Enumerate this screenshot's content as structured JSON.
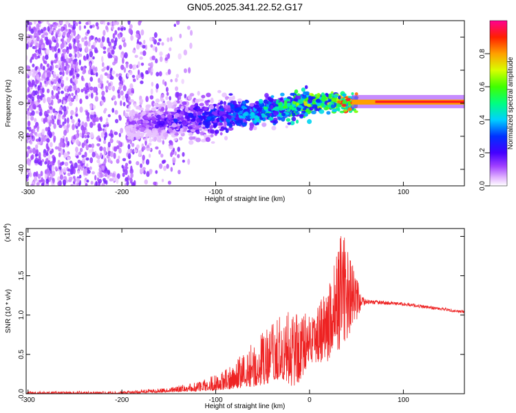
{
  "title": "GN05.2025.341.22.52.G17",
  "chart_data": [
    {
      "type": "heatmap",
      "name": "spectrogram",
      "xlabel": "Height of straight line (km)",
      "ylabel": "Frequency (Hz)",
      "xlim": [
        -302,
        165
      ],
      "ylim": [
        -50,
        50
      ],
      "xticks": [
        -300,
        -200,
        -100,
        0,
        100
      ],
      "yticks": [
        -40,
        -20,
        0,
        20,
        40
      ],
      "colorbar": {
        "label": "Normalized spectral amplitude",
        "range": [
          0,
          1
        ],
        "ticks": [
          0.0,
          0.2,
          0.4,
          0.6,
          0.8
        ]
      },
      "ridge": [
        {
          "x": -190,
          "freq": -12,
          "amp": 0.12
        },
        {
          "x": -150,
          "freq": -11,
          "amp": 0.2
        },
        {
          "x": -100,
          "freq": -8,
          "amp": 0.28
        },
        {
          "x": -60,
          "freq": -6,
          "amp": 0.38
        },
        {
          "x": -20,
          "freq": -2,
          "amp": 0.5
        },
        {
          "x": 0,
          "freq": 0,
          "amp": 0.62
        },
        {
          "x": 20,
          "freq": 0,
          "amp": 0.58
        },
        {
          "x": 45,
          "freq": 0,
          "amp": 0.85
        },
        {
          "x": 70,
          "freq": 1,
          "amp": 0.78
        },
        {
          "x": 100,
          "freq": 1,
          "amp": 0.95
        },
        {
          "x": 165,
          "freq": 1,
          "amp": 0.9
        }
      ]
    },
    {
      "type": "line",
      "name": "snr",
      "xlabel": "Height of straight line (km)",
      "ylabel": "SNR (10 * v/v)",
      "y_multiplier": "(x10^4)",
      "xlim": [
        -302,
        165
      ],
      "ylim": [
        0,
        2.1
      ],
      "xticks": [
        -300,
        -200,
        -100,
        0,
        100
      ],
      "yticks": [
        0.0,
        0.5,
        1.0,
        1.5,
        2.0
      ],
      "envelope": [
        {
          "x": -300,
          "low": 0.0,
          "high": 0.03
        },
        {
          "x": -200,
          "low": 0.0,
          "high": 0.03
        },
        {
          "x": -150,
          "low": 0.02,
          "high": 0.08
        },
        {
          "x": -120,
          "low": 0.03,
          "high": 0.15
        },
        {
          "x": -90,
          "low": 0.05,
          "high": 0.3
        },
        {
          "x": -70,
          "low": 0.08,
          "high": 0.55
        },
        {
          "x": -50,
          "low": 0.1,
          "high": 0.8
        },
        {
          "x": -30,
          "low": 0.2,
          "high": 1.0
        },
        {
          "x": -15,
          "low": 0.05,
          "high": 1.1
        },
        {
          "x": 0,
          "low": 0.4,
          "high": 1.0
        },
        {
          "x": 20,
          "low": 0.4,
          "high": 1.4
        },
        {
          "x": 35,
          "low": 0.6,
          "high": 2.1
        },
        {
          "x": 50,
          "low": 0.9,
          "high": 1.5
        },
        {
          "x": 55,
          "low": 1.08,
          "high": 1.25
        },
        {
          "x": 60,
          "low": 1.14,
          "high": 1.2
        },
        {
          "x": 100,
          "low": 1.12,
          "high": 1.16
        },
        {
          "x": 165,
          "low": 1.02,
          "high": 1.06
        }
      ],
      "color": "#ee2222"
    }
  ]
}
